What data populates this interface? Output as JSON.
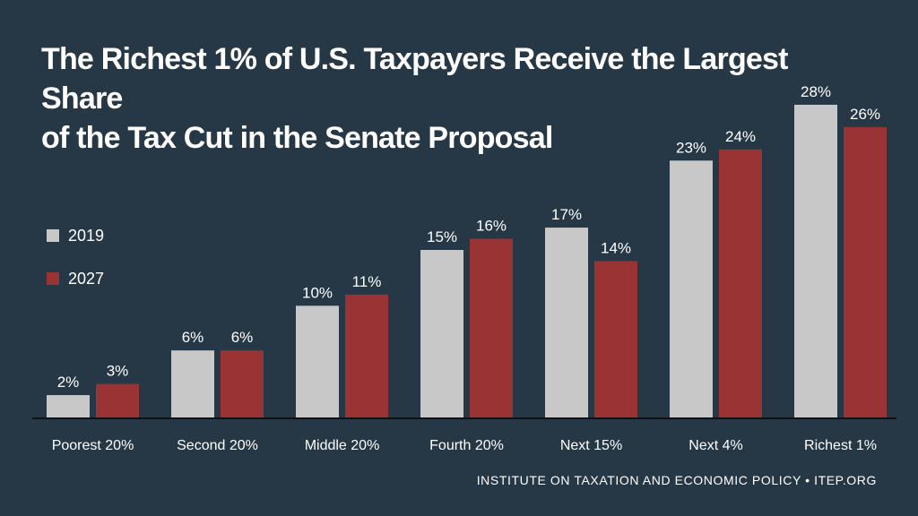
{
  "title_lines": [
    "The Richest 1% of U.S. Taxpayers Receive the Largest Share",
    "of the Tax Cut in the Senate Proposal"
  ],
  "source": "INSTITUTE ON TAXATION AND ECONOMIC POLICY • ITEP.ORG",
  "colors": {
    "background": "#263845",
    "series_2019": "#c8c8c8",
    "series_2027": "#9a3434",
    "text": "#ffffff",
    "axis": "#111111"
  },
  "chart_data": {
    "type": "bar",
    "title": "The Richest 1% of U.S. Taxpayers Receive the Largest Share of the Tax Cut in the Senate Proposal",
    "categories": [
      "Poorest 20%",
      "Second 20%",
      "Middle 20%",
      "Fourth 20%",
      "Next 15%",
      "Next 4%",
      "Richest 1%"
    ],
    "series": [
      {
        "name": "2019",
        "values": [
          2,
          6,
          10,
          15,
          17,
          23,
          28
        ],
        "labels": [
          "2%",
          "6%",
          "10%",
          "15%",
          "17%",
          "23%",
          "28%"
        ]
      },
      {
        "name": "2027",
        "values": [
          3,
          6,
          11,
          16,
          14,
          24,
          26
        ],
        "labels": [
          "3%",
          "6%",
          "11%",
          "16%",
          "14%",
          "24%",
          "26%"
        ]
      }
    ],
    "xlabel": "",
    "ylabel": "",
    "ylim": [
      0,
      30
    ],
    "grid": false,
    "legend": "left"
  }
}
